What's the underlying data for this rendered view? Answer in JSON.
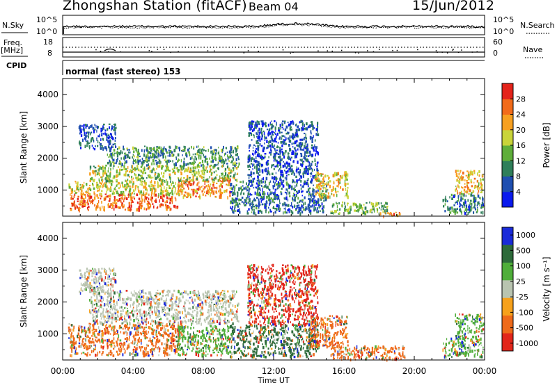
{
  "header": {
    "station": "Zhongshan Station (fitACF)",
    "beam": "Beam 04",
    "date": "15/Jun/2012"
  },
  "left_labels": {
    "nsky": "N.Sky",
    "freq": "Freq.",
    "freq_unit": "[MHz]",
    "cpid": "CPID"
  },
  "right_labels": {
    "nsearch": "N.Search",
    "nave": "Nave"
  },
  "noise_axis": {
    "left_ticks": [
      "10^5",
      "10^0"
    ],
    "right_ticks": [
      "10^5",
      "10^0"
    ]
  },
  "freq_axis": {
    "left_ticks": [
      "18",
      "8"
    ],
    "right_ticks": [
      "60",
      "0"
    ]
  },
  "cpid_text": "normal (fast stereo) 153",
  "colors": {
    "power_scale": [
      "#0a1aee",
      "#1f4fb0",
      "#2f7f5a",
      "#5fae3a",
      "#c9d43a",
      "#f7a020",
      "#f26b1a",
      "#e4231b"
    ],
    "velocity_scale": [
      "#1a2bd9",
      "#2d6a3a",
      "#4fae3a",
      "#b9c4b0",
      "#f6a11c",
      "#ee6a1a",
      "#e2261b"
    ]
  },
  "chart_data": [
    {
      "type": "heatmap",
      "title": "",
      "xlabel": "Time UT",
      "ylabel": "Slant Range [km]",
      "x_tick_labels": [
        "00:00",
        "04:00",
        "08:00",
        "12:00",
        "16:00",
        "20:00",
        "00:00"
      ],
      "x_ticks_hours": [
        0,
        4,
        8,
        12,
        16,
        20,
        24
      ],
      "xlim_hours": [
        0,
        24
      ],
      "y_tick_labels": [
        "1000",
        "2000",
        "3000",
        "4000"
      ],
      "yticks": [
        1000,
        2000,
        3000,
        4000
      ],
      "ylim": [
        180,
        4500
      ],
      "colorbar_label": "Power [dB]",
      "colorbar_ticks": [
        "4",
        "8",
        "12",
        "16",
        "20",
        "24",
        "28"
      ],
      "colorbar_values": [
        4,
        8,
        12,
        16,
        20,
        24,
        28
      ],
      "colorbar_range": [
        0,
        32
      ],
      "regions": [
        {
          "t0": 0.4,
          "t1": 6.5,
          "r0": 400,
          "r1": 900,
          "value": 26
        },
        {
          "t0": 0.3,
          "t1": 6.8,
          "r0": 900,
          "r1": 1300,
          "value": 18
        },
        {
          "t0": 6.5,
          "t1": 9.5,
          "r0": 800,
          "r1": 1400,
          "value": 24
        },
        {
          "t0": 1.5,
          "t1": 10.0,
          "r0": 1300,
          "r1": 1800,
          "value": 16
        },
        {
          "t0": 2.5,
          "t1": 10.0,
          "r0": 1800,
          "r1": 2400,
          "value": 11
        },
        {
          "t0": 0.9,
          "t1": 3.0,
          "r0": 2300,
          "r1": 3100,
          "value": 6
        },
        {
          "t0": 9.5,
          "t1": 15.0,
          "r0": 300,
          "r1": 1300,
          "value": 8
        },
        {
          "t0": 10.5,
          "t1": 14.5,
          "r0": 1300,
          "r1": 3200,
          "value": 6
        },
        {
          "t0": 14.3,
          "t1": 16.2,
          "r0": 800,
          "r1": 1600,
          "value": 20
        },
        {
          "t0": 15.2,
          "t1": 18.5,
          "r0": 280,
          "r1": 650,
          "value": 14
        },
        {
          "t0": 18.0,
          "t1": 19.5,
          "r0": 200,
          "r1": 320,
          "value": 25
        },
        {
          "t0": 22.3,
          "t1": 23.9,
          "r0": 900,
          "r1": 1650,
          "value": 21
        },
        {
          "t0": 21.6,
          "t1": 23.9,
          "r0": 300,
          "r1": 900,
          "value": 9
        }
      ]
    },
    {
      "type": "heatmap",
      "title": "",
      "xlabel": "Time UT",
      "ylabel": "Slant Range [km]",
      "x_tick_labels": [
        "00:00",
        "04:00",
        "08:00",
        "12:00",
        "16:00",
        "20:00",
        "00:00"
      ],
      "x_ticks_hours": [
        0,
        4,
        8,
        12,
        16,
        20,
        24
      ],
      "xlim_hours": [
        0,
        24
      ],
      "y_tick_labels": [
        "1000",
        "2000",
        "3000",
        "4000"
      ],
      "yticks": [
        1000,
        2000,
        3000,
        4000
      ],
      "ylim": [
        180,
        4500
      ],
      "colorbar_label": "Velocity [m s⁻¹]",
      "colorbar_ticks": [
        "1000",
        "500",
        "100",
        "25",
        "-25",
        "-100",
        "-500",
        "-1000"
      ],
      "colorbar_values": [
        1000,
        500,
        100,
        25,
        -25,
        -100,
        -500,
        -1000
      ],
      "regions": [
        {
          "t0": 0.4,
          "t1": 6.5,
          "r0": 350,
          "r1": 800,
          "value": -120
        },
        {
          "t0": 0.3,
          "t1": 6.8,
          "r0": 800,
          "r1": 1350,
          "value": -300
        },
        {
          "t0": 6.5,
          "t1": 9.5,
          "r0": 350,
          "r1": 1300,
          "value": 60
        },
        {
          "t0": 1.5,
          "t1": 10.0,
          "r0": 1350,
          "r1": 2400,
          "value": 0
        },
        {
          "t0": 0.9,
          "t1": 3.0,
          "r0": 2300,
          "r1": 3100,
          "value": 0
        },
        {
          "t0": 9.5,
          "t1": 14.5,
          "r0": 300,
          "r1": 1300,
          "value": 150
        },
        {
          "t0": 10.5,
          "t1": 14.5,
          "r0": 1300,
          "r1": 3200,
          "value": -600
        },
        {
          "t0": 14.0,
          "t1": 16.2,
          "r0": 600,
          "r1": 1600,
          "value": -400
        },
        {
          "t0": 15.2,
          "t1": 19.5,
          "r0": 220,
          "r1": 650,
          "value": -120
        },
        {
          "t0": 22.3,
          "t1": 23.9,
          "r0": 900,
          "r1": 1650,
          "value": 40
        },
        {
          "t0": 21.6,
          "t1": 23.9,
          "r0": 300,
          "r1": 900,
          "value": 80
        }
      ]
    }
  ]
}
